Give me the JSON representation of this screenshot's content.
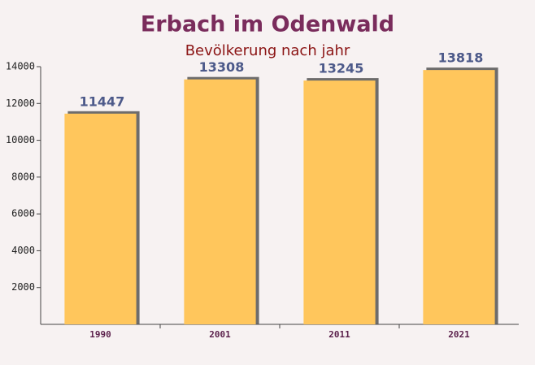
{
  "chart_data": {
    "type": "bar",
    "title": "Erbach im Odenwald",
    "subtitle": "Bevölkerung nach jahr",
    "categories": [
      "1990",
      "2001",
      "2011",
      "2021"
    ],
    "values": [
      11447,
      13308,
      13245,
      13818
    ],
    "color": "#ffc65c",
    "ylim": [
      0,
      14000
    ],
    "yticks": [
      2000,
      4000,
      6000,
      8000,
      10000,
      12000,
      14000
    ]
  }
}
